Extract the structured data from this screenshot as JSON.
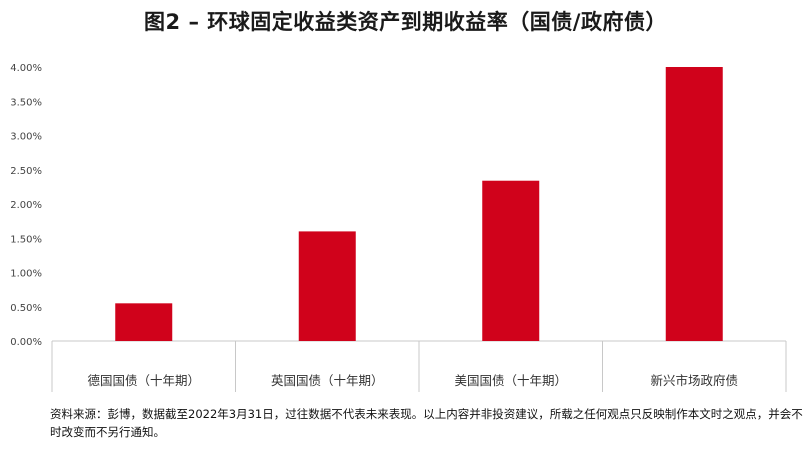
{
  "page": {
    "title": "图2 – 环球固定收益类资产到期收益率（国债/政府债）",
    "footnote": "资料来源：彭博，数据截至2022年3月31日，过往数据不代表未来表现。以上内容并非投资建议，所载之任何观点只反映制作本文时之观点，并会不时改变而不另行通知。"
  },
  "chart_data": {
    "type": "bar",
    "title": "图2 – 环球固定收益类资产到期收益率（国债/政府债）",
    "categories": [
      "德国国债（十年期）",
      "英国国债（十年期）",
      "美国国债（十年期）",
      "新兴市场政府债"
    ],
    "values": [
      0.55,
      1.6,
      2.34,
      4.0
    ],
    "unit": "%",
    "ylim": [
      0,
      4
    ],
    "yticks": [
      "0.00%",
      "0.50%",
      "1.00%",
      "1.50%",
      "2.00%",
      "2.50%",
      "3.00%",
      "3.50%",
      "4.00%"
    ],
    "bar_color": "#d0021b",
    "grid": false,
    "legend": "none"
  }
}
